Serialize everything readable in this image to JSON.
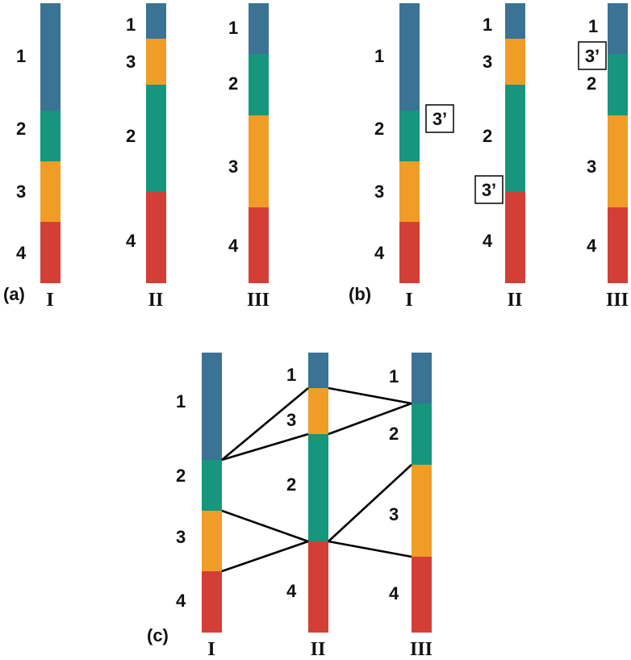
{
  "colors": {
    "1": "#3a7394",
    "2": "#16967c",
    "3": "#f09d28",
    "4": "#d33f37"
  },
  "panels": {
    "a": {
      "label": "(a)",
      "bars": [
        {
          "roman": "I",
          "order": [
            "1",
            "2",
            "3",
            "4"
          ],
          "labels": [
            "1",
            "2",
            "3",
            "4"
          ]
        },
        {
          "roman": "II",
          "order": [
            "1",
            "3",
            "2",
            "4"
          ],
          "labels": [
            "1",
            "3",
            "2",
            "4"
          ]
        },
        {
          "roman": "III",
          "order": [
            "1",
            "2",
            "3",
            "4"
          ],
          "labels": [
            "1",
            "2",
            "3",
            "4"
          ]
        }
      ]
    },
    "b": {
      "label": "(b)",
      "bars": [
        {
          "roman": "I",
          "order": [
            "1",
            "2",
            "3",
            "4"
          ],
          "labels": [
            "1",
            "2",
            "3",
            "4"
          ]
        },
        {
          "roman": "II",
          "order": [
            "1",
            "3",
            "2",
            "4"
          ],
          "labels": [
            "1",
            "3",
            "2",
            "4"
          ]
        },
        {
          "roman": "III",
          "order": [
            "1",
            "2",
            "3",
            "4"
          ],
          "labels": [
            "1",
            "2",
            "3",
            "4"
          ]
        }
      ],
      "insertion_label": "3’"
    },
    "c": {
      "label": "(c)",
      "bars": [
        {
          "roman": "I",
          "order": [
            "1",
            "2",
            "3",
            "4"
          ],
          "labels": [
            "1",
            "2",
            "3",
            "4"
          ]
        },
        {
          "roman": "II",
          "order": [
            "1",
            "3",
            "2",
            "4"
          ],
          "labels": [
            "1",
            "3",
            "2",
            "4"
          ]
        },
        {
          "roman": "III",
          "order": [
            "1",
            "2",
            "3",
            "4"
          ],
          "labels": [
            "1",
            "2",
            "3",
            "4"
          ]
        }
      ]
    }
  }
}
